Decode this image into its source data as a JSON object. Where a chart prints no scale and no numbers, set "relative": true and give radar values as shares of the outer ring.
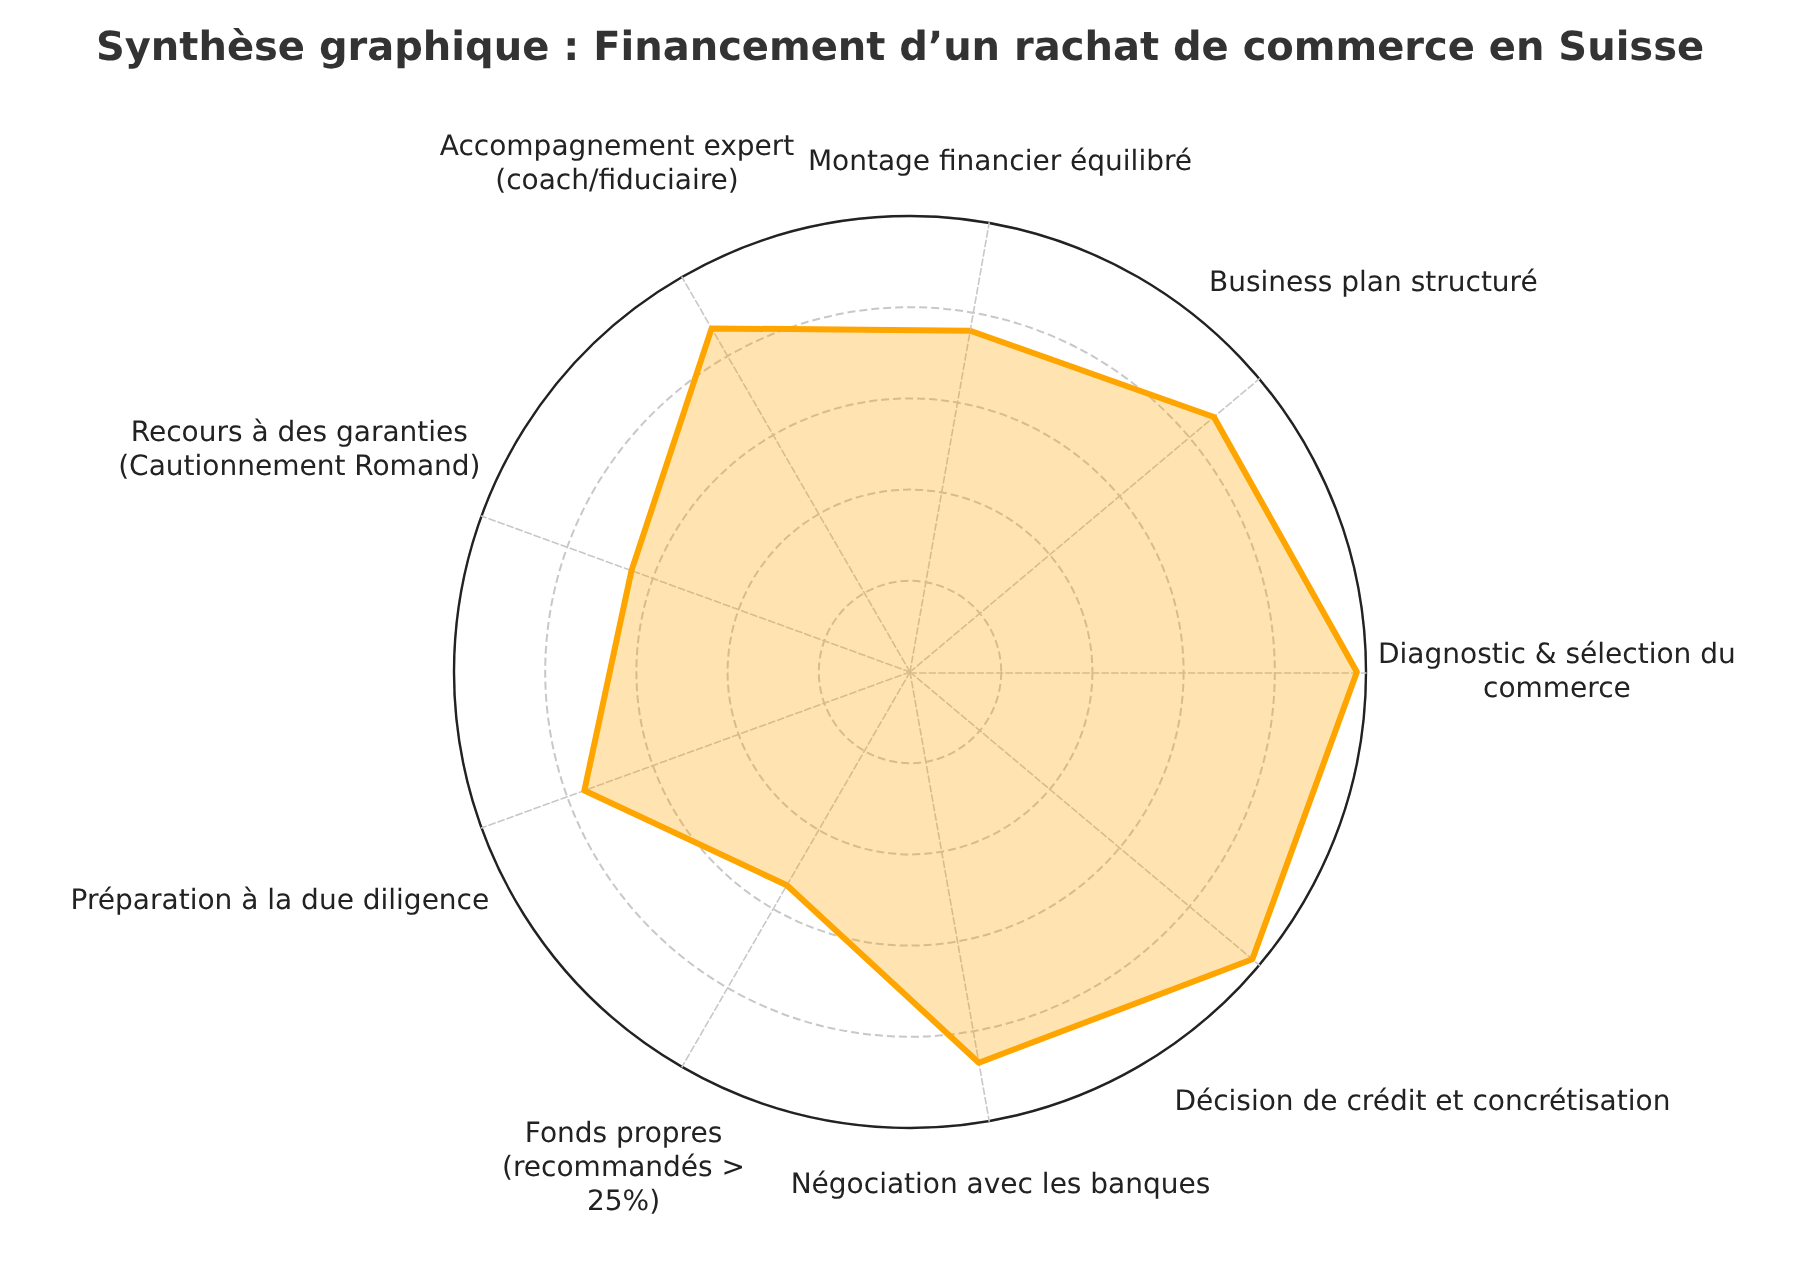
{
  "chart_data": {
    "type": "radar",
    "title": "Synthèse graphique : Financement d’un rachat de commerce en Suisse",
    "categories": [
      "Montage financier équilibré",
      "Business plan structuré",
      "Diagnostic & sélection du commerce",
      "Décision de crédit et concrétisation",
      "Négociation avec les banques",
      "Fonds propres (recommandés > 25%)",
      "Préparation à la due diligence",
      "Recours à des garanties (Cautionnement Romand)",
      "Accompagnement expert (coach/fiduciaire)"
    ],
    "series": [
      {
        "color": "#ffa500",
        "values": [
          0.76,
          0.87,
          0.98,
          0.98,
          0.87,
          0.54,
          0.76,
          0.65,
          0.87
        ]
      }
    ],
    "relative": true,
    "grid": true,
    "marker": "none"
  }
}
